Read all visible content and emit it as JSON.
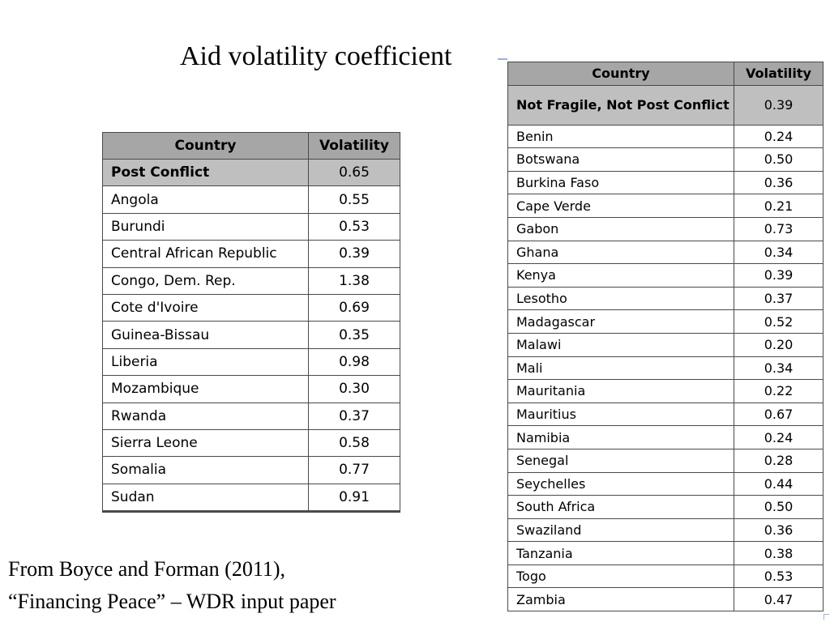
{
  "title": "Aid volatility coefficient",
  "left_table": {
    "headers": [
      "Country",
      "Volatility"
    ],
    "group": {
      "label": "Post Conflict",
      "value": "0.65"
    },
    "rows": [
      {
        "country": "Angola",
        "value": "0.55"
      },
      {
        "country": "Burundi",
        "value": "0.53"
      },
      {
        "country": "Central African Republic",
        "value": "0.39"
      },
      {
        "country": "Congo, Dem. Rep.",
        "value": "1.38"
      },
      {
        "country": "Cote d'Ivoire",
        "value": "0.69"
      },
      {
        "country": "Guinea-Bissau",
        "value": "0.35"
      },
      {
        "country": "Liberia",
        "value": "0.98"
      },
      {
        "country": "Mozambique",
        "value": "0.30"
      },
      {
        "country": "Rwanda",
        "value": "0.37"
      },
      {
        "country": "Sierra Leone",
        "value": "0.58"
      },
      {
        "country": "Somalia",
        "value": "0.77"
      },
      {
        "country": "Sudan",
        "value": "0.91"
      }
    ]
  },
  "right_table": {
    "headers": [
      "Country",
      "Volatility"
    ],
    "group": {
      "label": "Not Fragile, Not Post Conflict",
      "value": "0.39"
    },
    "rows": [
      {
        "country": "Benin",
        "value": "0.24"
      },
      {
        "country": "Botswana",
        "value": "0.50"
      },
      {
        "country": "Burkina Faso",
        "value": "0.36"
      },
      {
        "country": "Cape Verde",
        "value": "0.21"
      },
      {
        "country": "Gabon",
        "value": "0.73"
      },
      {
        "country": "Ghana",
        "value": "0.34"
      },
      {
        "country": "Kenya",
        "value": "0.39"
      },
      {
        "country": "Lesotho",
        "value": "0.37"
      },
      {
        "country": "Madagascar",
        "value": "0.52"
      },
      {
        "country": "Malawi",
        "value": "0.20"
      },
      {
        "country": "Mali",
        "value": "0.34"
      },
      {
        "country": "Mauritania",
        "value": "0.22"
      },
      {
        "country": "Mauritius",
        "value": "0.67"
      },
      {
        "country": "Namibia",
        "value": "0.24"
      },
      {
        "country": "Senegal",
        "value": "0.28"
      },
      {
        "country": "Seychelles",
        "value": "0.44"
      },
      {
        "country": "South Africa",
        "value": "0.50"
      },
      {
        "country": "Swaziland",
        "value": "0.36"
      },
      {
        "country": "Tanzania",
        "value": "0.38"
      },
      {
        "country": "Togo",
        "value": "0.53"
      },
      {
        "country": "Zambia",
        "value": "0.47"
      }
    ]
  },
  "source": {
    "line1": "From Boyce and Forman (2011),",
    "line2": "“Financing Peace” – WDR input paper"
  }
}
